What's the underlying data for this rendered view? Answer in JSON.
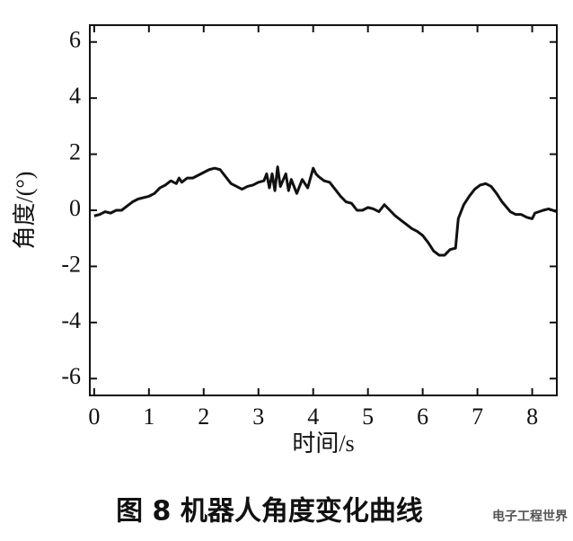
{
  "chart_data": {
    "type": "line",
    "title": "图 8   机器人角度变化曲线",
    "x_label": "时间/s",
    "y_label": "角度/(°)",
    "watermark": "电子工程世界",
    "color": "#111111",
    "xlim": [
      -0.08,
      8.45
    ],
    "ylim": [
      -6.6,
      6.6
    ],
    "xticks": [
      0,
      1,
      2,
      3,
      4,
      5,
      6,
      7,
      8
    ],
    "yticks": [
      -6,
      -4,
      -2,
      0,
      2,
      4,
      6
    ],
    "x": [
      0,
      0.1,
      0.2,
      0.3,
      0.4,
      0.5,
      0.6,
      0.7,
      0.8,
      0.9,
      1.0,
      1.1,
      1.2,
      1.3,
      1.4,
      1.5,
      1.55,
      1.6,
      1.7,
      1.8,
      1.9,
      2.0,
      2.1,
      2.2,
      2.3,
      2.4,
      2.5,
      2.6,
      2.7,
      2.8,
      2.9,
      3.0,
      3.1,
      3.15,
      3.2,
      3.25,
      3.3,
      3.35,
      3.4,
      3.5,
      3.55,
      3.6,
      3.7,
      3.8,
      3.9,
      4.0,
      4.05,
      4.1,
      4.2,
      4.3,
      4.4,
      4.5,
      4.6,
      4.7,
      4.8,
      4.9,
      5.0,
      5.1,
      5.2,
      5.3,
      5.4,
      5.5,
      5.6,
      5.7,
      5.8,
      5.9,
      6.0,
      6.1,
      6.2,
      6.3,
      6.4,
      6.5,
      6.6,
      6.65,
      6.75,
      6.85,
      6.95,
      7.05,
      7.15,
      7.25,
      7.35,
      7.45,
      7.6,
      7.7,
      7.8,
      7.9,
      8.0,
      8.05,
      8.2,
      8.3,
      8.45
    ],
    "values": [
      -0.2,
      -0.15,
      -0.05,
      -0.1,
      0.0,
      0.0,
      0.15,
      0.3,
      0.4,
      0.45,
      0.5,
      0.6,
      0.8,
      0.9,
      1.05,
      0.95,
      1.15,
      1.0,
      1.15,
      1.15,
      1.25,
      1.35,
      1.45,
      1.5,
      1.45,
      1.2,
      0.95,
      0.85,
      0.75,
      0.85,
      0.9,
      1.0,
      1.05,
      1.3,
      0.8,
      1.3,
      0.7,
      1.55,
      0.85,
      1.3,
      0.7,
      1.1,
      0.6,
      1.1,
      0.8,
      1.5,
      1.3,
      1.2,
      1.05,
      1.0,
      0.75,
      0.5,
      0.3,
      0.25,
      0.0,
      0.0,
      0.1,
      0.05,
      -0.05,
      0.2,
      0.0,
      -0.2,
      -0.35,
      -0.5,
      -0.65,
      -0.75,
      -0.9,
      -1.15,
      -1.45,
      -1.6,
      -1.6,
      -1.4,
      -1.35,
      -0.3,
      0.2,
      0.5,
      0.75,
      0.9,
      0.95,
      0.85,
      0.6,
      0.3,
      -0.05,
      -0.15,
      -0.15,
      -0.25,
      -0.3,
      -0.1,
      0.0,
      0.05,
      -0.05
    ]
  }
}
